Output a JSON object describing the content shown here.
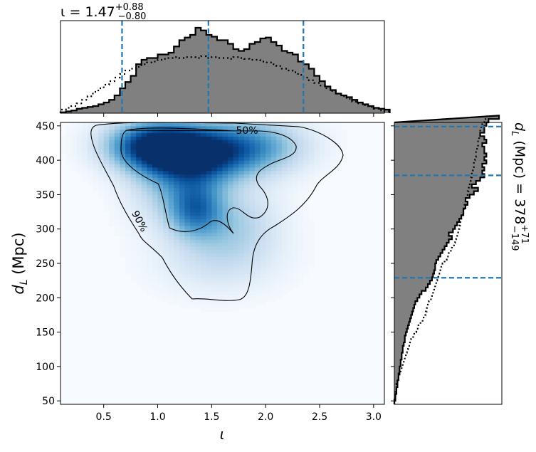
{
  "chart_data": {
    "type": "heatmap",
    "top_title": {
      "prefix": "ι = ",
      "value": "1.47",
      "upper": "+0.88",
      "lower": "−0.80"
    },
    "right_title": {
      "prefix": "d",
      "subscript": "L",
      "unit": " (Mpc) = ",
      "value": "378",
      "upper": "+71",
      "lower": "−149"
    },
    "xlabel": "ι",
    "ylabel": {
      "symbol": "d",
      "subscript": "L",
      "unit": " (Mpc)"
    },
    "xlim": [
      0.1,
      3.1
    ],
    "ylim": [
      45,
      455
    ],
    "xticks": [
      0.5,
      1.0,
      1.5,
      2.0,
      2.5,
      3.0
    ],
    "xtick_labels": [
      "0.5",
      "1.0",
      "1.5",
      "2.0",
      "2.5",
      "3.0"
    ],
    "yticks": [
      50,
      100,
      150,
      200,
      250,
      300,
      350,
      400,
      450
    ],
    "ytick_labels": [
      "50",
      "100",
      "150",
      "200",
      "250",
      "300",
      "350",
      "400",
      "450"
    ],
    "iota_median_and_bounds": [
      0.67,
      1.47,
      2.35
    ],
    "dL_median_and_bounds": [
      229,
      378,
      449
    ],
    "contour_labels": [
      "50%",
      "90%"
    ],
    "colormap": [
      "#f7fbff",
      "#deebf7",
      "#c6dbef",
      "#9ecae1",
      "#6baed6",
      "#4292c6",
      "#2171b5",
      "#08519c",
      "#08306b"
    ],
    "marginal_fill_color": "#808080",
    "quantile_line_color": "#1f77b4",
    "iota_marginal": {
      "bin_edges_start": 0.1,
      "bin_width": 0.05,
      "posterior": [
        0.01,
        0.02,
        0.03,
        0.05,
        0.06,
        0.07,
        0.08,
        0.1,
        0.12,
        0.15,
        0.2,
        0.28,
        0.35,
        0.42,
        0.55,
        0.6,
        0.62,
        0.62,
        0.66,
        0.66,
        0.68,
        0.75,
        0.82,
        0.85,
        0.88,
        0.96,
        0.93,
        0.88,
        0.86,
        0.82,
        0.82,
        0.78,
        0.72,
        0.7,
        0.72,
        0.78,
        0.8,
        0.84,
        0.85,
        0.8,
        0.76,
        0.7,
        0.68,
        0.66,
        0.58,
        0.55,
        0.5,
        0.42,
        0.36,
        0.3,
        0.26,
        0.22,
        0.2,
        0.18,
        0.15,
        0.12,
        0.1,
        0.08,
        0.06,
        0.05,
        0.04
      ],
      "prior": [
        0.04,
        0.06,
        0.08,
        0.11,
        0.15,
        0.19,
        0.24,
        0.28,
        0.32,
        0.36,
        0.4,
        0.44,
        0.48,
        0.5,
        0.52,
        0.55,
        0.57,
        0.58,
        0.6,
        0.61,
        0.62,
        0.63,
        0.62,
        0.63,
        0.63,
        0.62,
        0.64,
        0.62,
        0.63,
        0.62,
        0.62,
        0.61,
        0.63,
        0.62,
        0.61,
        0.6,
        0.6,
        0.58,
        0.57,
        0.55,
        0.53,
        0.5,
        0.48,
        0.46,
        0.43,
        0.4,
        0.37,
        0.34,
        0.31,
        0.28,
        0.25,
        0.22,
        0.19,
        0.16,
        0.13,
        0.11,
        0.09,
        0.07,
        0.05,
        0.03,
        0.02
      ]
    },
    "dL_marginal": {
      "bin_edges_start": 45,
      "bin_width": 5,
      "posterior": [
        0.0,
        0.01,
        0.01,
        0.02,
        0.02,
        0.03,
        0.03,
        0.04,
        0.04,
        0.05,
        0.05,
        0.06,
        0.06,
        0.07,
        0.07,
        0.08,
        0.08,
        0.09,
        0.1,
        0.1,
        0.11,
        0.12,
        0.13,
        0.14,
        0.15,
        0.16,
        0.17,
        0.18,
        0.19,
        0.2,
        0.22,
        0.24,
        0.26,
        0.3,
        0.32,
        0.34,
        0.36,
        0.37,
        0.38,
        0.39,
        0.39,
        0.4,
        0.42,
        0.44,
        0.46,
        0.48,
        0.5,
        0.52,
        0.55,
        0.52,
        0.56,
        0.58,
        0.6,
        0.62,
        0.64,
        0.66,
        0.66,
        0.68,
        0.7,
        0.68,
        0.72,
        0.76,
        0.8,
        0.74,
        0.78,
        0.82,
        0.86,
        0.84,
        0.86,
        0.84,
        0.88,
        0.86,
        0.88,
        0.86,
        0.86,
        0.84,
        0.88,
        0.86,
        0.82,
        0.86,
        0.86,
        0.88,
        0.9,
        1.0
      ],
      "prior": [
        0.0,
        0.0,
        0.01,
        0.01,
        0.02,
        0.02,
        0.03,
        0.04,
        0.05,
        0.06,
        0.07,
        0.08,
        0.09,
        0.1,
        0.11,
        0.12,
        0.13,
        0.15,
        0.16,
        0.18,
        0.19,
        0.21,
        0.23,
        0.25,
        0.27,
        0.28,
        0.3,
        0.31,
        0.32,
        0.33,
        0.35,
        0.36,
        0.37,
        0.38,
        0.39,
        0.4,
        0.41,
        0.42,
        0.43,
        0.44,
        0.46,
        0.48,
        0.5,
        0.52,
        0.54,
        0.55,
        0.57,
        0.58,
        0.59,
        0.6,
        0.61,
        0.62,
        0.63,
        0.64,
        0.65,
        0.66,
        0.67,
        0.67,
        0.68,
        0.69,
        0.7,
        0.7,
        0.71,
        0.72,
        0.72,
        0.73,
        0.74,
        0.74,
        0.75,
        0.76,
        0.76,
        0.77,
        0.78,
        0.78,
        0.79,
        0.8,
        0.8,
        0.81,
        0.82,
        0.82,
        0.83,
        0.84,
        0.86,
        0.88
      ]
    },
    "density_peaks": [
      {
        "x": 0.95,
        "y": 422,
        "sx": 0.3,
        "sy": 25,
        "w": 1.0
      },
      {
        "x": 1.35,
        "y": 405,
        "sx": 0.3,
        "sy": 30,
        "w": 0.85
      },
      {
        "x": 1.85,
        "y": 420,
        "sx": 0.35,
        "sy": 28,
        "w": 0.65
      },
      {
        "x": 1.35,
        "y": 330,
        "sx": 0.18,
        "sy": 28,
        "w": 0.62
      },
      {
        "x": 1.7,
        "y": 310,
        "sx": 0.3,
        "sy": 38,
        "w": 0.3
      },
      {
        "x": 1.55,
        "y": 255,
        "sx": 0.4,
        "sy": 35,
        "w": 0.18
      },
      {
        "x": 1.05,
        "y": 360,
        "sx": 0.25,
        "sy": 40,
        "w": 0.25
      }
    ]
  }
}
